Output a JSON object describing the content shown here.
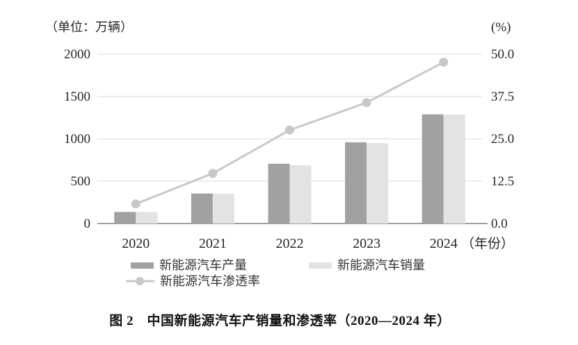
{
  "figure": {
    "caption": "图 2　中国新能源汽车产销量和渗透率（2020—2024 年）"
  },
  "chart_data": {
    "type": "bar",
    "subtype": "grouped-bar-with-line",
    "title": "中国新能源汽车产销量和渗透率（2020—2024 年）",
    "categories": [
      "2020",
      "2021",
      "2022",
      "2023",
      "2024"
    ],
    "series": [
      {
        "name": "新能源汽车产量",
        "type": "bar",
        "axis": "left",
        "color": "#a1a1a1",
        "values": [
          136.6,
          354.5,
          705.8,
          958.7,
          1288.8
        ]
      },
      {
        "name": "新能源汽车销量",
        "type": "bar",
        "axis": "left",
        "color": "#e3e3e3",
        "values": [
          136.7,
          352.1,
          688.7,
          949.5,
          1286.6
        ]
      },
      {
        "name": "新能源汽车渗透率",
        "type": "line",
        "axis": "right",
        "color": "#c8c8c8",
        "values": [
          5.8,
          14.8,
          27.6,
          35.7,
          47.6
        ]
      }
    ],
    "left_axis": {
      "label": "（单位：万辆）",
      "ticks": [
        "2000",
        "1500",
        "1000",
        "500",
        "0"
      ],
      "range": [
        0,
        2000
      ]
    },
    "right_axis": {
      "label": "(%)",
      "ticks": [
        "50.0",
        "37.5",
        "25.0",
        "12.5",
        "0.0"
      ],
      "range": [
        0,
        50
      ]
    },
    "x_axis": {
      "suffix": "（年份）"
    },
    "grid": true,
    "legend_position": "bottom",
    "colors": {
      "grid": "#d9d9d9",
      "axis_line": "#9e9e9e",
      "text": "#262626"
    }
  }
}
